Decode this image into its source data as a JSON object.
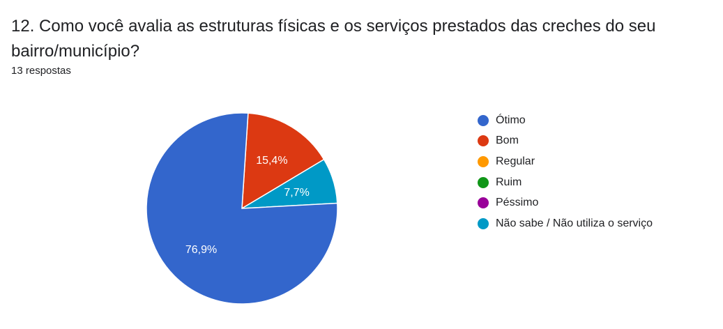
{
  "question": {
    "title": "12. Como você avalia as estruturas físicas e os serviços prestados das creches do seu bairro/município?",
    "responses": "13 respostas"
  },
  "chart_data": {
    "type": "pie",
    "categories": [
      "Ótimo",
      "Bom",
      "Regular",
      "Ruim",
      "Péssimo",
      "Não sabe / Não utiliza o serviço"
    ],
    "values": [
      76.9,
      15.4,
      0,
      0,
      0,
      7.7
    ],
    "labels": [
      "76,9%",
      "15,4%",
      "",
      "",
      "",
      "7,7%"
    ],
    "colors": [
      "#3366cc",
      "#dc3912",
      "#ff9900",
      "#109618",
      "#990099",
      "#0099c6"
    ],
    "legend_position": "right"
  }
}
